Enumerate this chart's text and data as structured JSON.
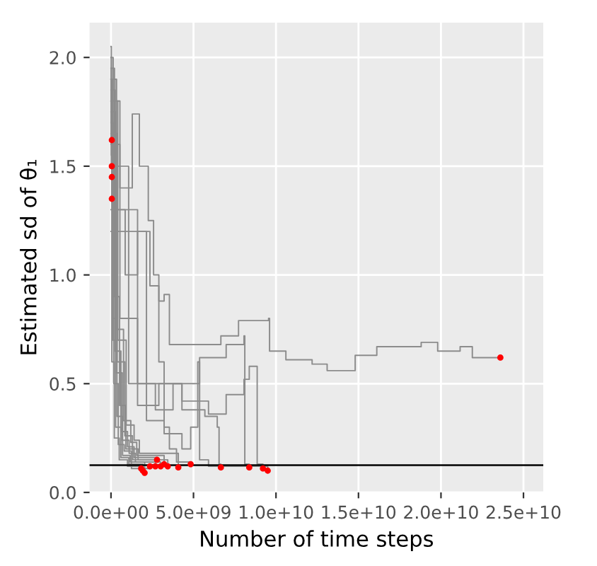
{
  "chart_data": {
    "type": "step",
    "xlabel": "Number of time steps",
    "ylabel": "Estimated sd of θ₁",
    "xlim": [
      -1300000000.0,
      26200000000.0
    ],
    "ylim": [
      0,
      2.16
    ],
    "xticks": [
      {
        "value": 0,
        "label": "0.0e+00"
      },
      {
        "value": 5000000000.0,
        "label": "5.0e+09"
      },
      {
        "value": 10000000000.0,
        "label": "1.0e+10"
      },
      {
        "value": 15000000000.0,
        "label": "1.5e+10"
      },
      {
        "value": 20000000000.0,
        "label": "2.0e+10"
      },
      {
        "value": 25000000000.0,
        "label": "2.5e+10"
      }
    ],
    "yticks": [
      {
        "value": 0,
        "label": "0.0"
      },
      {
        "value": 0.5,
        "label": "0.5"
      },
      {
        "value": 1,
        "label": "1.0"
      },
      {
        "value": 1.5,
        "label": "1.5"
      },
      {
        "value": 2,
        "label": "2.0"
      }
    ],
    "grid": true,
    "line_style": "solid",
    "marker": "none",
    "ref_lines": [
      {
        "axis": "y",
        "value": 0.125,
        "color": "#000000"
      }
    ],
    "series": [
      {
        "color": "#8c8c8c",
        "x": [
          0,
          320000000.0,
          860000000.0,
          1610000000.0,
          2360000000.0,
          2900000000.0,
          3220000000.0,
          3500000000.0,
          3540000000.0,
          4730000000.0,
          6660000000.0,
          7730000000.0,
          9550000000.0,
          9610000000.0,
          10600000000.0,
          12190000000.0,
          13100000000.0,
          14800000000.0,
          16110000000.0,
          17450000000.0,
          18800000000.0,
          19800000000.0,
          21160000000.0,
          21900000000.0,
          23600000000.0
        ],
        "values": [
          1.9,
          1.3,
          1.0,
          1.2,
          0.95,
          0.88,
          0.91,
          0.91,
          0.68,
          0.68,
          0.72,
          0.79,
          0.8,
          0.65,
          0.61,
          0.59,
          0.56,
          0.63,
          0.67,
          0.67,
          0.69,
          0.65,
          0.67,
          0.62,
          0.62
        ]
      },
      {
        "color": "#8c8c8c",
        "x": [
          0,
          540000000.0,
          1290000000.0,
          1720000000.0,
          2260000000.0,
          2580000000.0,
          2900000000.0,
          3220000000.0,
          3540000000.0,
          3970000000.0,
          4830000000.0
        ],
        "values": [
          1.8,
          1.4,
          1.74,
          1.5,
          1.25,
          1.0,
          0.6,
          0.3,
          0.2,
          0.14,
          0.13
        ]
      },
      {
        "color": "#8c8c8c",
        "x": [
          0,
          540000000.0,
          1610000000.0,
          2690000000.0,
          3760000000.0,
          5370000000.0,
          6980000000.0,
          8060000000.0,
          8110000000.0,
          8380000000.0
        ],
        "values": [
          1.6,
          0.8,
          0.5,
          0.38,
          0.5,
          0.62,
          0.68,
          0.72,
          0.13,
          0.115
        ]
      },
      {
        "color": "#8c8c8c",
        "x": [
          0,
          1070000000.0,
          2150000000.0,
          3220000000.0,
          4300000000.0,
          4830000000.0,
          5260000000.0,
          5370000000.0,
          5910000000.0,
          9020000000.0,
          9500000000.0
        ],
        "values": [
          1.5,
          0.5,
          0.33,
          0.27,
          0.2,
          0.3,
          0.6,
          0.15,
          0.12,
          0.12,
          0.1
        ]
      },
      {
        "color": "#8c8c8c",
        "x": [
          0,
          1610000000.0,
          2900000000.0,
          4300000000.0,
          5690000000.0,
          6440000000.0,
          6550000000.0,
          6660000000.0
        ],
        "values": [
          1.3,
          0.4,
          0.5,
          0.38,
          0.35,
          0.3,
          0.13,
          0.115
        ]
      },
      {
        "color": "#8c8c8c",
        "x": [
          0,
          2150000000.0,
          4300000000.0,
          5910000000.0,
          6980000000.0,
          8060000000.0,
          8380000000.0,
          8810000000.0,
          8860000000.0,
          9210000000.0
        ],
        "values": [
          1.2,
          0.5,
          0.42,
          0.36,
          0.45,
          0.52,
          0.58,
          0.58,
          0.13,
          0.11
        ]
      },
      {
        "color": "#8c8c8c",
        "x": [
          0,
          20000000.0,
          50000000.0
        ],
        "values": [
          2.0,
          1.7,
          1.62
        ]
      },
      {
        "color": "#8c8c8c",
        "x": [
          0,
          20000000.0,
          50000000.0
        ],
        "values": [
          1.95,
          1.6,
          1.5
        ]
      },
      {
        "color": "#8c8c8c",
        "x": [
          0,
          20000000.0,
          50000000.0
        ],
        "values": [
          1.9,
          1.55,
          1.45
        ]
      },
      {
        "color": "#8c8c8c",
        "x": [
          0,
          20000000.0,
          50000000.0
        ],
        "values": [
          2.05,
          1.5,
          1.35
        ]
      },
      {
        "color": "#8c8c8c",
        "x": [
          0,
          50000000.0,
          200000000.0,
          500000000.0,
          1000000000.0,
          1830000000.0
        ],
        "values": [
          1.9,
          0.6,
          0.25,
          0.15,
          0.12,
          0.11
        ]
      },
      {
        "color": "#8c8c8c",
        "x": [
          0,
          90000000.0,
          280000000.0,
          600000000.0,
          1080000000.0,
          1930000000.0
        ],
        "values": [
          1.8,
          0.7,
          0.3,
          0.16,
          0.13,
          0.1
        ]
      },
      {
        "color": "#8c8c8c",
        "x": [
          0,
          130000000.0,
          360000000.0,
          700000000.0,
          1160000000.0,
          2040000000.0
        ],
        "values": [
          2.0,
          0.8,
          0.35,
          0.17,
          0.14,
          0.09
        ]
      },
      {
        "color": "#8c8c8c",
        "x": [
          0,
          170000000.0,
          440000000.0,
          800000000.0,
          1240000000.0,
          2360000000.0
        ],
        "values": [
          1.7,
          0.5,
          0.22,
          0.19,
          0.11,
          0.12
        ]
      },
      {
        "color": "#8c8c8c",
        "x": [
          0,
          210000000.0,
          520000000.0,
          900000000.0,
          1320000000.0,
          2690000000.0
        ],
        "values": [
          1.95,
          0.9,
          0.4,
          0.2,
          0.15,
          0.12
        ]
      },
      {
        "color": "#8c8c8c",
        "x": [
          0,
          250000000.0,
          600000000.0,
          1000000000.0,
          1400000000.0,
          2790000000.0
        ],
        "values": [
          1.85,
          0.65,
          0.28,
          0.21,
          0.16,
          0.15
        ]
      },
      {
        "color": "#8c8c8c",
        "x": [
          0,
          290000000.0,
          680000000.0,
          1100000000.0,
          1480000000.0,
          3010000000.0
        ],
        "values": [
          1.75,
          0.55,
          0.24,
          0.18,
          0.14,
          0.12
        ]
      },
      {
        "color": "#8c8c8c",
        "x": [
          0,
          330000000.0,
          760000000.0,
          1200000000.0,
          1560000000.0,
          3220000000.0
        ],
        "values": [
          1.9,
          0.75,
          0.33,
          0.23,
          0.17,
          0.13
        ]
      },
      {
        "color": "#8c8c8c",
        "x": [
          0,
          370000000.0,
          840000000.0,
          1300000000.0,
          1640000000.0,
          3440000000.0
        ],
        "values": [
          1.65,
          0.6,
          0.26,
          0.2,
          0.15,
          0.12
        ]
      },
      {
        "color": "#8c8c8c",
        "x": [
          0,
          410000000.0,
          920000000.0,
          1400000000.0,
          1720000000.0,
          4080000000.0
        ],
        "values": [
          1.8,
          0.7,
          0.31,
          0.24,
          0.18,
          0.115
        ]
      },
      {
        "type": "scatter",
        "marker": "circle",
        "color": "#ff0000",
        "x": [
          23600000000.0,
          4830000000.0,
          8380000000.0,
          9500000000.0,
          6660000000.0,
          9210000000.0,
          50000000.0,
          50000000.0,
          50000000.0,
          50000000.0,
          1830000000.0,
          1930000000.0,
          2040000000.0,
          2360000000.0,
          2690000000.0,
          2790000000.0,
          3010000000.0,
          3220000000.0,
          3440000000.0,
          4080000000.0
        ],
        "values": [
          0.62,
          0.13,
          0.115,
          0.1,
          0.115,
          0.11,
          1.62,
          1.5,
          1.45,
          1.35,
          0.11,
          0.1,
          0.09,
          0.12,
          0.12,
          0.15,
          0.12,
          0.13,
          0.12,
          0.115
        ]
      }
    ]
  }
}
